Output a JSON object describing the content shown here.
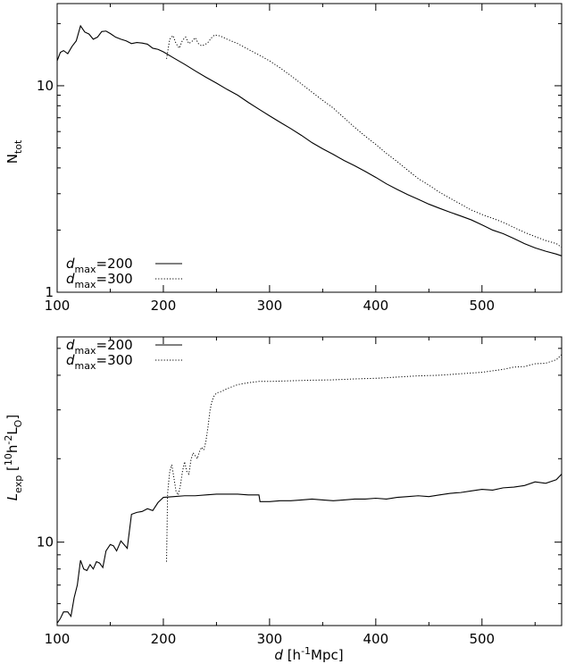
{
  "chart_data": [
    {
      "type": "line",
      "ylabel": "N_tot",
      "ylabel_main": "N",
      "ylabel_sub": "tot",
      "xlabel": "",
      "xscale": "linear",
      "yscale": "log",
      "xlim": [
        100,
        575
      ],
      "ylim": [
        1,
        25
      ],
      "xticks": [
        100,
        200,
        300,
        400,
        500
      ],
      "xtick_labels": [
        "100",
        "200",
        "300",
        "400",
        "500"
      ],
      "yticks": [
        1,
        10
      ],
      "ytick_labels": [
        "1",
        "10"
      ],
      "legend_position": "bottom-left",
      "series": [
        {
          "name": "d_max=200",
          "legend_main": "d",
          "legend_sub": "max",
          "legend_value": "=200",
          "style": "solid",
          "x": [
            100,
            103,
            106,
            110,
            114,
            118,
            122,
            126,
            130,
            134,
            138,
            142,
            146,
            150,
            155,
            160,
            165,
            170,
            175,
            180,
            185,
            190,
            195,
            200,
            210,
            220,
            230,
            240,
            250,
            260,
            270,
            280,
            290,
            300,
            310,
            320,
            330,
            340,
            350,
            360,
            370,
            380,
            390,
            400,
            410,
            420,
            430,
            440,
            450,
            460,
            470,
            480,
            490,
            500,
            510,
            520,
            530,
            540,
            550,
            560,
            570,
            575
          ],
          "y": [
            13.2,
            14.5,
            14.8,
            14.3,
            15.5,
            16.5,
            19.5,
            18.2,
            17.8,
            16.8,
            17.2,
            18.3,
            18.4,
            17.9,
            17.2,
            16.8,
            16.5,
            16.0,
            16.2,
            16.1,
            15.9,
            15.2,
            15.0,
            14.6,
            13.6,
            12.7,
            11.8,
            11.0,
            10.3,
            9.6,
            9.0,
            8.3,
            7.7,
            7.15,
            6.65,
            6.2,
            5.75,
            5.3,
            4.95,
            4.65,
            4.35,
            4.1,
            3.85,
            3.6,
            3.35,
            3.15,
            2.97,
            2.82,
            2.67,
            2.55,
            2.44,
            2.34,
            2.24,
            2.12,
            2.0,
            1.92,
            1.82,
            1.72,
            1.64,
            1.58,
            1.53,
            1.5
          ]
        },
        {
          "name": "d_max=300",
          "legend_main": "d",
          "legend_sub": "max",
          "legend_value": "=300",
          "style": "dotted",
          "x": [
            203,
            206,
            209,
            212,
            215,
            218,
            221,
            224,
            227,
            230,
            233,
            236,
            239,
            242,
            245,
            248,
            252,
            256,
            260,
            270,
            280,
            290,
            300,
            310,
            320,
            330,
            340,
            350,
            360,
            370,
            380,
            390,
            400,
            410,
            420,
            430,
            440,
            450,
            460,
            470,
            480,
            490,
            500,
            510,
            520,
            530,
            540,
            550,
            560,
            570,
            575
          ],
          "y": [
            13.5,
            16.8,
            17.5,
            16.0,
            15.2,
            16.6,
            17.2,
            16.0,
            16.4,
            17.1,
            16.0,
            15.6,
            15.8,
            16.2,
            17.0,
            17.6,
            17.5,
            17.2,
            16.8,
            16.0,
            15.0,
            14.1,
            13.2,
            12.2,
            11.2,
            10.2,
            9.3,
            8.5,
            7.8,
            7.0,
            6.3,
            5.7,
            5.2,
            4.7,
            4.3,
            3.9,
            3.55,
            3.3,
            3.05,
            2.85,
            2.67,
            2.5,
            2.38,
            2.28,
            2.18,
            2.06,
            1.95,
            1.86,
            1.78,
            1.72,
            1.65
          ]
        }
      ]
    },
    {
      "type": "line",
      "ylabel": "L_exp [10^10 h^-2 L_O]",
      "ylabel_main": "L",
      "ylabel_sub": "exp",
      "ylabel_rest": " [10",
      "ylabel_sup1": "10",
      "ylabel_mid": "h",
      "ylabel_sup2": "-2",
      "ylabel_end": "L",
      "ylabel_sub2": "O",
      "ylabel_close": "]",
      "xlabel": "d [h^-1Mpc]",
      "xlabel_main": "d",
      "xlabel_open": "[h",
      "xlabel_sup": "-1",
      "xlabel_close": "Mpc]",
      "xscale": "linear",
      "yscale": "log",
      "xlim": [
        100,
        575
      ],
      "ylim": [
        5,
        55
      ],
      "xticks": [
        100,
        200,
        300,
        400,
        500
      ],
      "xtick_labels": [
        "100",
        "200",
        "300",
        "400",
        "500"
      ],
      "yticks": [
        10
      ],
      "ytick_labels": [
        "10"
      ],
      "legend_position": "top-left",
      "series": [
        {
          "name": "d_max=200",
          "legend_main": "d",
          "legend_sub": "max",
          "legend_value": "=200",
          "style": "solid",
          "x": [
            100,
            103,
            106,
            110,
            113,
            116,
            119,
            122,
            125,
            128,
            131,
            134,
            137,
            140,
            143,
            146,
            150,
            153,
            156,
            160,
            163,
            166,
            170,
            175,
            180,
            185,
            190,
            195,
            200,
            210,
            220,
            230,
            240,
            250,
            260,
            270,
            280,
            290,
            291,
            300,
            310,
            320,
            330,
            340,
            350,
            360,
            370,
            380,
            390,
            400,
            410,
            420,
            430,
            440,
            450,
            460,
            470,
            480,
            490,
            500,
            510,
            520,
            530,
            540,
            550,
            560,
            570,
            575
          ],
          "y": [
            5.1,
            5.3,
            5.6,
            5.6,
            5.4,
            6.3,
            7.0,
            8.6,
            8.0,
            7.9,
            8.3,
            8.0,
            8.5,
            8.4,
            8.1,
            9.3,
            9.8,
            9.7,
            9.3,
            10.1,
            9.8,
            9.5,
            12.6,
            12.8,
            12.9,
            13.2,
            13.0,
            13.9,
            14.5,
            14.6,
            14.7,
            14.7,
            14.8,
            14.9,
            14.9,
            14.9,
            14.8,
            14.8,
            14.0,
            14.0,
            14.1,
            14.1,
            14.2,
            14.3,
            14.2,
            14.1,
            14.2,
            14.3,
            14.3,
            14.4,
            14.3,
            14.5,
            14.6,
            14.7,
            14.6,
            14.8,
            15.0,
            15.1,
            15.3,
            15.5,
            15.4,
            15.7,
            15.8,
            16.0,
            16.5,
            16.3,
            16.8,
            17.6
          ]
        },
        {
          "name": "d_max=300",
          "legend_main": "d",
          "legend_sub": "max",
          "legend_value": "=300",
          "style": "dotted",
          "x": [
            203,
            204,
            206,
            208,
            210,
            212,
            214,
            216,
            218,
            220,
            222,
            224,
            226,
            228,
            230,
            232,
            234,
            236,
            238,
            240,
            242,
            244,
            246,
            248,
            250,
            255,
            260,
            270,
            280,
            290,
            300,
            310,
            320,
            340,
            360,
            380,
            400,
            420,
            440,
            460,
            480,
            500,
            510,
            520,
            530,
            540,
            550,
            560,
            570,
            575
          ],
          "y": [
            8.5,
            15.0,
            18.0,
            19.0,
            17.0,
            15.2,
            14.8,
            16.0,
            18.0,
            19.5,
            18.0,
            17.6,
            19.8,
            21.0,
            20.5,
            20.0,
            21.2,
            22.0,
            21.5,
            23.0,
            26.0,
            30.0,
            32.5,
            33.8,
            34.5,
            35.0,
            35.8,
            37.0,
            37.6,
            38.0,
            38.0,
            38.1,
            38.2,
            38.4,
            38.5,
            38.8,
            39.0,
            39.4,
            39.8,
            40.0,
            40.5,
            41.0,
            41.5,
            42.0,
            42.8,
            43.0,
            44.0,
            44.2,
            45.5,
            47.5
          ]
        }
      ]
    }
  ]
}
